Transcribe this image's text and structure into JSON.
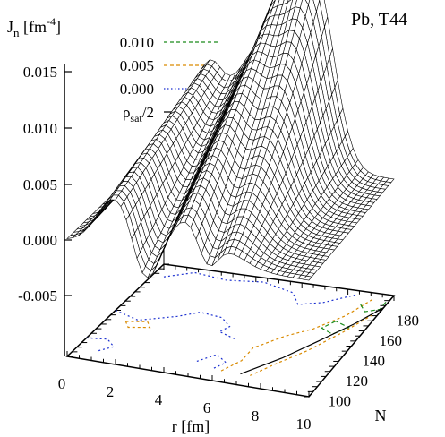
{
  "chart_data": {
    "type": "surface3d",
    "title": "Pb, T44",
    "zlabel": "J",
    "zlabel_sub": "n",
    "zlabel_unit_pre": "[fm",
    "zlabel_unit_sup": "-4",
    "zlabel_unit_post": "]",
    "xlabel": "r [fm]",
    "ylabel": "N",
    "x_ticks": [
      "0",
      "2",
      "4",
      "6",
      "8",
      "10"
    ],
    "y_ticks": [
      "100",
      "120",
      "140",
      "160",
      "180"
    ],
    "z_ticks": [
      "0.015",
      "0.010",
      "0.005",
      "0.000",
      "-0.005"
    ],
    "xlim": [
      0,
      10
    ],
    "ylim": [
      90,
      190
    ],
    "zlim": [
      -0.009,
      0.018
    ],
    "legend": [
      {
        "label": "0.010",
        "color": "#1a8a1a",
        "style": "dashed"
      },
      {
        "label": "0.005",
        "color": "#d98a00",
        "style": "dashed"
      },
      {
        "label": "0.000",
        "color": "#1a2fd0",
        "style": "dotted"
      },
      {
        "label_main": "ρ",
        "label_sub": "sat",
        "label_post": "/2",
        "color": "#000000",
        "style": "solid"
      }
    ],
    "legend_position": "top-left",
    "surface_profile": {
      "r": [
        0,
        1,
        2,
        3,
        4,
        5,
        6,
        7,
        8,
        9,
        10
      ],
      "J_n_at_N_100": [
        0.0,
        0.001,
        0.004,
        0.0,
        -0.001,
        0.002,
        0.0,
        0.0,
        0.0,
        0.0,
        0.0
      ],
      "J_n_at_N_180": [
        0.0,
        0.002,
        0.008,
        0.004,
        0.011,
        0.009,
        0.0155,
        0.006,
        0.001,
        0.0,
        0.0
      ]
    }
  }
}
